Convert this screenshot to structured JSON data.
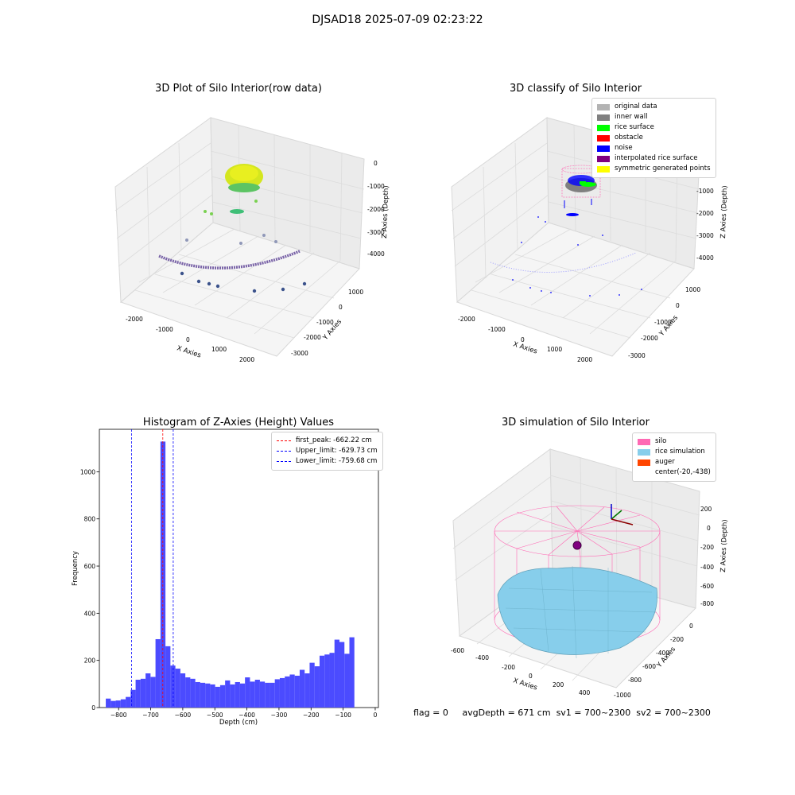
{
  "suptitle": "DJSAD18 2025-07-09 02:23:22",
  "status": {
    "flag": "flag = 0",
    "avg_depth": "avgDepth = 671 cm",
    "sv1": "sv1 = 700~2300",
    "sv2": "sv2 = 700~2300"
  },
  "chart_data": [
    {
      "type": "scatter",
      "title": "3D Plot of Silo Interior(row data)",
      "xlabel": "X Axies",
      "ylabel": "Y Axies",
      "zlabel": "Z Axies (Depth)",
      "x_ticks": [
        "-2000",
        "-1000",
        "0",
        "1000",
        "2000"
      ],
      "y_ticks": [
        "1000",
        "0",
        "-1000",
        "-2000",
        "-3000"
      ],
      "z_ticks": [
        "0",
        "-1000",
        "-2000",
        "-3000",
        "-4000"
      ],
      "xlim": [
        -2500,
        2500
      ],
      "ylim": [
        -3500,
        1500
      ],
      "zlim": [
        -4600,
        0
      ]
    },
    {
      "type": "scatter",
      "title": "3D classify of Silo Interior",
      "xlabel": "X Axies",
      "ylabel": "Y Axies",
      "zlabel": "Z Axies (Depth)",
      "x_ticks": [
        "-2000",
        "-1000",
        "0",
        "1000",
        "2000"
      ],
      "y_ticks": [
        "1000",
        "0",
        "-1000",
        "-2000",
        "-3000"
      ],
      "z_ticks": [
        "-1000",
        "-2000",
        "-3000",
        "-4000"
      ],
      "legend_position": "top-right",
      "legend": [
        {
          "label": "original data",
          "color": "#b3b3b3"
        },
        {
          "label": "inner wall",
          "color": "#808080"
        },
        {
          "label": "rice surface",
          "color": "#00ff00"
        },
        {
          "label": "obstacle",
          "color": "#ff0000"
        },
        {
          "label": "noise",
          "color": "#0000ff"
        },
        {
          "label": "interpolated rice surface",
          "color": "#800080"
        },
        {
          "label": "symmetric generated points",
          "color": "#ffff00"
        }
      ]
    },
    {
      "type": "bar",
      "title": "Histogram of Z-Axies (Height) Values",
      "xlabel": "Depth (cm)",
      "ylabel": "Frequency",
      "x_ticks": [
        -800,
        -700,
        -600,
        -500,
        -400,
        -300,
        -200,
        -100,
        0
      ],
      "y_ticks": [
        0,
        200,
        400,
        600,
        800,
        1000
      ],
      "xlim": [
        -860,
        10
      ],
      "ylim": [
        0,
        1180
      ],
      "bar_color": "#4b4bff",
      "bin_start": -840,
      "bin_width": 15.5,
      "values": [
        38,
        28,
        30,
        35,
        45,
        75,
        118,
        122,
        145,
        130,
        290,
        1128,
        260,
        178,
        165,
        145,
        128,
        122,
        108,
        105,
        102,
        98,
        88,
        95,
        115,
        98,
        108,
        102,
        128,
        110,
        118,
        110,
        105,
        105,
        120,
        125,
        132,
        140,
        135,
        160,
        145,
        190,
        175,
        220,
        225,
        232,
        288,
        278,
        228,
        298
      ],
      "lines": [
        {
          "label": "first_peak: -662.22 cm",
          "x": -662.22,
          "color": "#ff0000"
        },
        {
          "label": "Upper_limit: -629.73 cm",
          "x": -629.73,
          "color": "#0000ff"
        },
        {
          "label": "Lower_limit: -759.68 cm",
          "x": -759.68,
          "color": "#0000ff"
        }
      ],
      "legend_position": "top-right"
    },
    {
      "type": "area",
      "title": "3D simulation of Silo Interior",
      "xlabel": "X Axies",
      "ylabel": "Y Axies",
      "zlabel": "Z Axies (Depth)",
      "x_ticks": [
        "-600",
        "-400",
        "-200",
        "0",
        "200",
        "400"
      ],
      "y_ticks": [
        "0",
        "-200",
        "-400",
        "-600",
        "-800",
        "-1000"
      ],
      "z_ticks": [
        "200",
        "0",
        "-200",
        "-400",
        "-600",
        "-800"
      ],
      "legend_position": "top-right",
      "legend": [
        {
          "label": "silo",
          "color": "#ff69b4"
        },
        {
          "label": "rice simulation",
          "color": "#87ceeb"
        },
        {
          "label": "auger",
          "color": "#ff4500"
        },
        {
          "label": "center(-20,-438)",
          "color": ""
        }
      ]
    }
  ]
}
